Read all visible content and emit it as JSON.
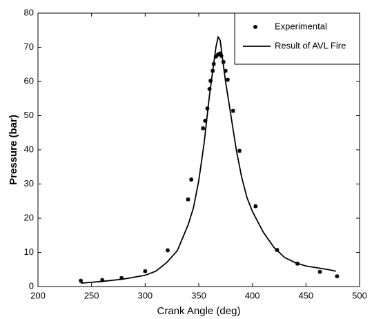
{
  "chart_data": {
    "type": "line",
    "xlabel": "Crank Angle (deg)",
    "ylabel": "Pressure (bar)",
    "xlim": [
      200,
      500
    ],
    "xticks": [
      200,
      250,
      300,
      350,
      400,
      450,
      500
    ],
    "ylim": [
      0,
      80
    ],
    "yticks": [
      0,
      10,
      20,
      30,
      40,
      50,
      60,
      70,
      80
    ],
    "grid": false,
    "legend": "upper right",
    "series": [
      {
        "name": "Experimental",
        "kind": "scatter",
        "color": "#000000",
        "x": [
          240,
          260,
          278,
          300,
          321,
          340,
          343,
          354,
          356,
          358,
          360,
          361,
          363,
          364,
          366,
          368,
          370,
          371,
          373,
          375,
          377,
          382,
          388,
          403,
          423,
          442,
          463,
          479
        ],
        "values": [
          1.7,
          1.9,
          2.5,
          4.5,
          10.6,
          25.5,
          31.3,
          46.3,
          48.5,
          52.1,
          57.8,
          60.2,
          63.1,
          65.1,
          67.3,
          67.9,
          68.2,
          67.5,
          65.7,
          63.1,
          60.5,
          51.4,
          39.7,
          23.5,
          10.7,
          6.7,
          4.3,
          3.0
        ]
      },
      {
        "name": "Result of AVL Fire",
        "kind": "line",
        "color": "#000000",
        "x": [
          240,
          260,
          280,
          300,
          310,
          320,
          330,
          340,
          345,
          350,
          355,
          360,
          363,
          366,
          368,
          370,
          372,
          375,
          380,
          385,
          390,
          395,
          400,
          410,
          420,
          430,
          440,
          450,
          460,
          470,
          478
        ],
        "values": [
          1.0,
          1.5,
          2.2,
          3.3,
          4.5,
          7,
          10.5,
          18,
          23,
          31,
          42,
          56,
          63,
          70,
          73,
          72,
          67,
          60,
          50,
          40,
          32,
          26,
          22,
          16,
          11.5,
          8.5,
          7,
          6,
          5.5,
          5,
          4.5
        ]
      }
    ]
  }
}
